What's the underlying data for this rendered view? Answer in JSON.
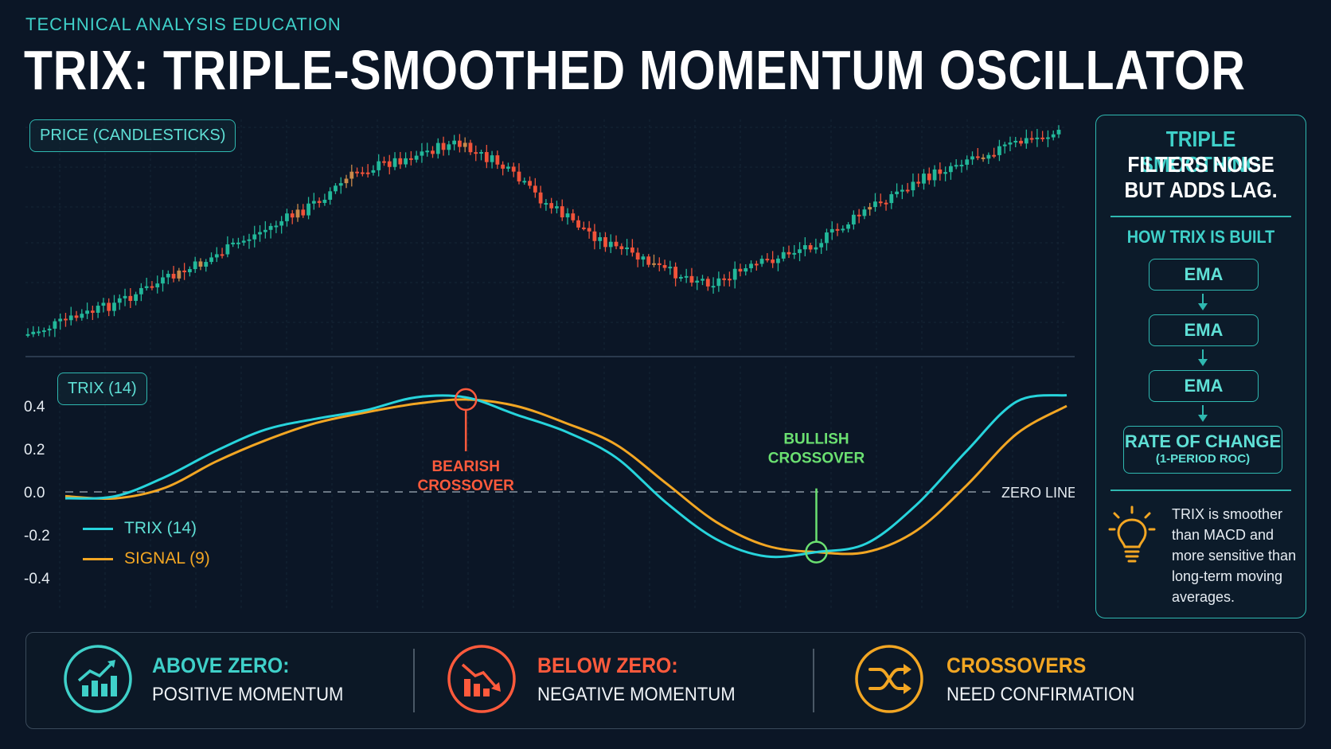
{
  "header": {
    "eyebrow": "TECHNICAL ANALYSIS EDUCATION",
    "title": "TRIX: TRIPLE-SMOOTHED MOMENTUM OSCILLATOR"
  },
  "colors": {
    "background": "#0b1626",
    "teal": "#3fd0c9",
    "bull_candle": "#22b89a",
    "bear_candle": "#f0533a",
    "neutral_candle": "#c98a4a",
    "trix_line": "#27d4dc",
    "signal_line": "#f2a623",
    "bearish": "#ff5a3c",
    "bullish": "#6be071"
  },
  "chart_data": [
    {
      "type": "candlestick",
      "title": "PRICE (CANDLESTICKS)",
      "note": "Illustrative OHLC path: rise, top near candle 67, decline to trough near candle 128, strong rally to new high",
      "grid": true
    },
    {
      "type": "line",
      "title": "TRIX (14)",
      "ylim": [
        -0.45,
        0.5
      ],
      "yticks": [
        "0.4",
        "0.2",
        "0.0",
        "-0.2",
        "-0.4"
      ],
      "ytick_values": [
        0.4,
        0.2,
        0.0,
        -0.2,
        -0.4
      ],
      "x": [
        0,
        10,
        20,
        30,
        40,
        50,
        60,
        70,
        80,
        90,
        100,
        110,
        120,
        130,
        140,
        150,
        160,
        170,
        180,
        190,
        200
      ],
      "series": [
        {
          "name": "TRIX (14)",
          "values": [
            -0.03,
            -0.02,
            0.07,
            0.19,
            0.29,
            0.34,
            0.38,
            0.44,
            0.44,
            0.36,
            0.28,
            0.16,
            -0.05,
            -0.22,
            -0.3,
            -0.28,
            -0.24,
            -0.06,
            0.19,
            0.42,
            0.45
          ]
        },
        {
          "name": "SIGNAL (9)",
          "values": [
            -0.02,
            -0.03,
            0.02,
            0.14,
            0.24,
            0.32,
            0.37,
            0.41,
            0.43,
            0.4,
            0.32,
            0.22,
            0.04,
            -0.14,
            -0.25,
            -0.28,
            -0.28,
            -0.18,
            0.03,
            0.27,
            0.4
          ]
        }
      ],
      "reference_line": {
        "value": 0.0,
        "label": "ZERO LINE"
      },
      "annotations": [
        {
          "text": [
            "BEARISH",
            "CROSSOVER"
          ],
          "x": 80,
          "y": 0.43,
          "kind": "bearish"
        },
        {
          "text": [
            "BULLISH",
            "CROSSOVER"
          ],
          "x": 150,
          "y": -0.28,
          "kind": "bullish"
        }
      ],
      "legend": [
        {
          "label": "TRIX (14)",
          "color": "#27d4dc"
        },
        {
          "label": "SIGNAL (9)",
          "color": "#f2a623"
        }
      ],
      "legend_position": "bottom-left",
      "grid": true
    }
  ],
  "sidebar": {
    "heading_accent": "TRIPLE SMOOTHING",
    "heading_line2": "FILTERS NOISE",
    "heading_line3": "BUT ADDS LAG.",
    "built_title": "HOW TRIX IS BUILT",
    "steps": [
      "EMA",
      "EMA",
      "EMA"
    ],
    "final_step": "RATE OF CHANGE",
    "final_step_sub": "(1-PERIOD ROC)",
    "tip": "TRIX is smoother than MACD and more sensitive than long-term moving averages.",
    "tip_icon": "lightbulb-icon"
  },
  "footer": {
    "cards": [
      {
        "icon": "rising-bar-chart-icon",
        "title": "ABOVE ZERO:",
        "text": "POSITIVE MOMENTUM",
        "color": "#3fd0c9"
      },
      {
        "icon": "falling-bar-chart-icon",
        "title": "BELOW ZERO:",
        "text": "NEGATIVE MOMENTUM",
        "color": "#ff5a3c"
      },
      {
        "icon": "shuffle-arrows-icon",
        "title": "CROSSOVERS",
        "text": "NEED CONFIRMATION",
        "color": "#f2a623"
      }
    ]
  }
}
